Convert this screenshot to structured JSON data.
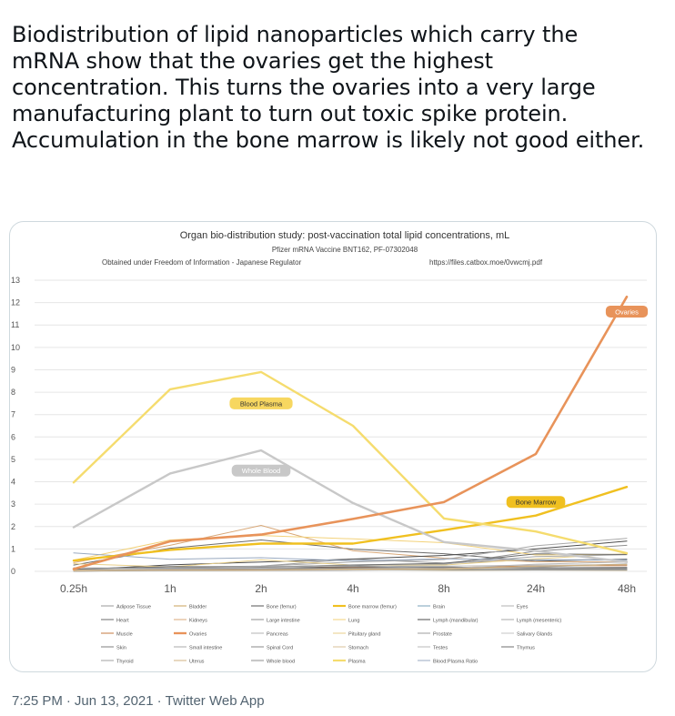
{
  "tweet": {
    "text": "Biodistribution of lipid nanoparticles which carry the mRNA show that the ovaries get the highest concentration. This turns the ovaries into a very large manufacturing plant to turn out toxic spike protein. Accumulation in the bone marrow is likely not good either.",
    "time": "7:25 PM",
    "date": "Jun 13, 2021",
    "app": "Twitter Web App",
    "separator": "·"
  },
  "chart_data": {
    "type": "line",
    "title": "Organ bio-distribution study: post-vaccination total lipid concentrations, mL",
    "subtitle": "Pfizer mRNA Vaccine BNT162, PF-07302048",
    "source_note": "Obtained under Freedom of Information - Japanese Regulator",
    "source_url": "https://files.catbox.moe/0vwcmj.pdf",
    "categories": [
      "0.25h",
      "1h",
      "2h",
      "4h",
      "8h",
      "24h",
      "48h"
    ],
    "ylim": [
      0,
      13
    ],
    "yticks": [
      0,
      1,
      2,
      3,
      4,
      5,
      6,
      7,
      8,
      9,
      10,
      11,
      12,
      13
    ],
    "grid": true,
    "legend_position": "bottom",
    "series": [
      {
        "name": "Adipose Tissue",
        "color": "#9a9a9a",
        "width": 1,
        "values": [
          0.06,
          0.19,
          0.23,
          0.55,
          0.37,
          0.51,
          0.5
        ]
      },
      {
        "name": "Bladder",
        "color": "#c9a15a",
        "width": 1,
        "values": [
          0.04,
          0.07,
          0.08,
          0.07,
          0.05,
          0.06,
          0.05
        ]
      },
      {
        "name": "Bone (femur)",
        "color": "#555555",
        "width": 1,
        "values": [
          0.09,
          0.12,
          0.15,
          0.2,
          0.19,
          0.15,
          0.16
        ]
      },
      {
        "name": "Bone marrow (femur)",
        "color": "#f0c020",
        "width": 2.4,
        "values": [
          0.48,
          0.96,
          1.24,
          1.24,
          1.84,
          2.49,
          3.77
        ]
      },
      {
        "name": "Brain",
        "color": "#7aa0b8",
        "width": 1,
        "values": [
          0.05,
          0.04,
          0.05,
          0.06,
          0.07,
          0.07,
          0.07
        ]
      },
      {
        "name": "Eyes",
        "color": "#b0b0b0",
        "width": 1,
        "values": [
          0.01,
          0.02,
          0.03,
          0.05,
          0.08,
          0.1,
          0.1
        ]
      },
      {
        "name": "Heart",
        "color": "#6d6d6d",
        "width": 1,
        "values": [
          0.28,
          1.03,
          1.4,
          0.99,
          0.79,
          0.45,
          0.55
        ]
      },
      {
        "name": "Kidneys",
        "color": "#d8a878",
        "width": 1,
        "values": [
          0.39,
          1.16,
          2.05,
          0.92,
          0.59,
          0.43,
          0.42
        ]
      },
      {
        "name": "Large intestine",
        "color": "#8f8f8f",
        "width": 1,
        "values": [
          0.01,
          0.05,
          0.09,
          0.13,
          0.31,
          0.9,
          1.16
        ]
      },
      {
        "name": "Lung",
        "color": "#f3d27a",
        "width": 1,
        "values": [
          0.5,
          1.4,
          1.6,
          1.45,
          1.28,
          0.73,
          0.76
        ]
      },
      {
        "name": "Lymph (mandibular)",
        "color": "#4d4d4d",
        "width": 1,
        "values": [
          0.06,
          0.29,
          0.42,
          0.55,
          0.71,
          1.0,
          1.35
        ]
      },
      {
        "name": "Lymph (mesenteric)",
        "color": "#a8a8a8",
        "width": 1,
        "values": [
          0.05,
          0.15,
          0.23,
          0.42,
          0.53,
          1.14,
          1.47
        ]
      },
      {
        "name": "Muscle",
        "color": "#c5793f",
        "width": 1,
        "values": [
          0.04,
          0.1,
          0.1,
          0.18,
          0.16,
          0.25,
          0.25
        ]
      },
      {
        "name": "Ovaries",
        "color": "#e8935a",
        "width": 2.6,
        "values": [
          0.1,
          1.34,
          1.64,
          2.34,
          3.09,
          5.24,
          12.26
        ]
      },
      {
        "name": "Pancreas",
        "color": "#b3b3b3",
        "width": 1,
        "values": [
          0.08,
          0.15,
          0.16,
          0.12,
          0.1,
          0.24,
          0.3
        ]
      },
      {
        "name": "Pituitary gland",
        "color": "#e8cf8a",
        "width": 1,
        "values": [
          0.34,
          0.2,
          0.51,
          0.28,
          0.28,
          0.56,
          0.79
        ]
      },
      {
        "name": "Prostate",
        "color": "#9d9d9d",
        "width": 1,
        "values": [
          0.06,
          0.09,
          0.12,
          0.16,
          0.16,
          0.12,
          0.12
        ]
      },
      {
        "name": "Salivary Glands",
        "color": "#c6c6c6",
        "width": 1,
        "values": [
          0.07,
          0.13,
          0.15,
          0.26,
          0.23,
          0.28,
          0.3
        ]
      },
      {
        "name": "Skin",
        "color": "#7f7f7f",
        "width": 1,
        "values": [
          0.01,
          0.05,
          0.08,
          0.16,
          0.19,
          0.16,
          0.18
        ]
      },
      {
        "name": "Small intestine",
        "color": "#a8a8a8",
        "width": 1,
        "values": [
          0.03,
          0.11,
          0.18,
          0.29,
          0.33,
          0.66,
          0.74
        ]
      },
      {
        "name": "Spinal Cord",
        "color": "#8a8a8a",
        "width": 1,
        "values": [
          0.04,
          0.04,
          0.06,
          0.09,
          0.08,
          0.07,
          0.07
        ]
      },
      {
        "name": "Stomach",
        "color": "#d8c29a",
        "width": 1,
        "values": [
          0.02,
          0.04,
          0.05,
          0.08,
          0.09,
          0.19,
          0.31
        ]
      },
      {
        "name": "Testes",
        "color": "#b8b8b8",
        "width": 1,
        "values": [
          0.04,
          0.05,
          0.07,
          0.1,
          0.12,
          0.32,
          0.42
        ]
      },
      {
        "name": "Thymus",
        "color": "#6f6f6f",
        "width": 1,
        "values": [
          0.09,
          0.21,
          0.19,
          0.28,
          0.36,
          0.78,
          0.75
        ]
      },
      {
        "name": "Thyroid",
        "color": "#a0a0a0",
        "width": 1,
        "values": [
          0.16,
          0.14,
          0.21,
          0.25,
          0.12,
          0.2,
          0.33
        ]
      },
      {
        "name": "Uterus",
        "color": "#d0b080",
        "width": 1,
        "values": [
          0.04,
          0.06,
          0.06,
          0.1,
          0.11,
          0.23,
          0.31
        ]
      },
      {
        "name": "Whole blood",
        "color": "#c8c8c8",
        "width": 2.4,
        "values": [
          1.97,
          4.37,
          5.4,
          3.05,
          1.31,
          0.91,
          0.42
        ]
      },
      {
        "name": "Plasma",
        "color": "#f5dc6e",
        "width": 2.4,
        "values": [
          3.97,
          8.13,
          8.9,
          6.5,
          2.36,
          1.78,
          0.81
        ]
      },
      {
        "name": "Blood:Plasma Ratio",
        "color": "#9aaac0",
        "width": 1,
        "values": [
          0.82,
          0.54,
          0.61,
          0.47,
          0.56,
          0.51,
          0.52
        ]
      }
    ],
    "annotations": [
      {
        "text": "Ovaries",
        "category": "48h",
        "value": 11.6,
        "fill": "#e8935a",
        "text_color": "#ffffff"
      },
      {
        "text": "Blood Plasma",
        "category": "2h",
        "value": 7.5,
        "fill": "#f7d760",
        "text_color": "#333333"
      },
      {
        "text": "Whole Blood",
        "category": "2h",
        "value": 4.5,
        "fill": "#c8c8c8",
        "text_color": "#ffffff"
      },
      {
        "text": "Bone Marrow",
        "category": "24h",
        "value": 3.1,
        "fill": "#f0c020",
        "text_color": "#333333"
      }
    ]
  }
}
